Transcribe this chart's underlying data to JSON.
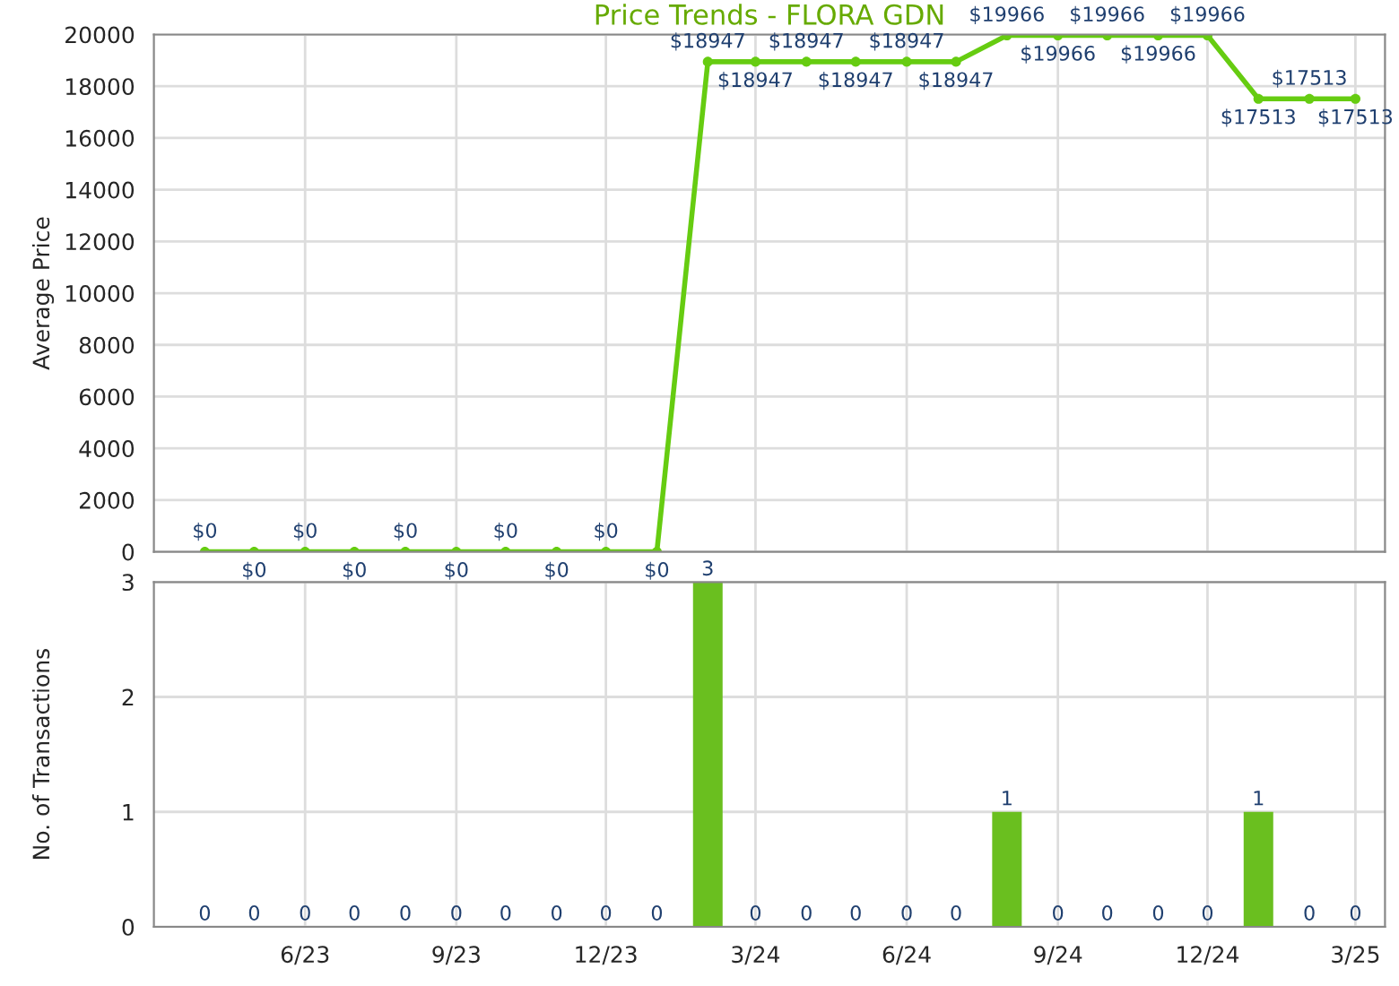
{
  "chart_data": [
    {
      "type": "line",
      "title": "Price Trends - FLORA GDN",
      "ylabel": "Average Price",
      "x": [
        "2023-04",
        "2023-05",
        "2023-06",
        "2023-07",
        "2023-08",
        "2023-09",
        "2023-10",
        "2023-11",
        "2023-12",
        "2024-01",
        "2024-02",
        "2024-03",
        "2024-04",
        "2024-05",
        "2024-06",
        "2024-07",
        "2024-08",
        "2024-09",
        "2024-10",
        "2024-11",
        "2024-12",
        "2025-01",
        "2025-02",
        "2025-03"
      ],
      "series": [
        {
          "color": "#66cc11",
          "values": [
            0,
            0,
            0,
            0,
            0,
            0,
            0,
            0,
            0,
            0,
            18947,
            18947,
            18947,
            18947,
            18947,
            18947,
            19966,
            19966,
            19966,
            19966,
            19966,
            17513,
            17513,
            17513
          ],
          "value_labels": [
            "$0",
            "$0",
            "$0",
            "$0",
            "$0",
            "$0",
            "$0",
            "$0",
            "$0",
            "$0",
            "$18947",
            "$18947",
            "$18947",
            "$18947",
            "$18947",
            "$18947",
            "$19966",
            "$19966",
            "$19966",
            "$19966",
            "$19966",
            "$17513",
            "$17513",
            "$17513"
          ]
        }
      ],
      "xlim": [
        "2023-03",
        "2025-03-19"
      ],
      "xticks": [
        {
          "value": "2023-06",
          "label": null
        },
        {
          "value": "2023-09",
          "label": null
        },
        {
          "value": "2023-12",
          "label": null
        },
        {
          "value": "2024-03",
          "label": null
        },
        {
          "value": "2024-06",
          "label": null
        },
        {
          "value": "2024-09",
          "label": null
        },
        {
          "value": "2024-12",
          "label": null
        },
        {
          "value": "2025-03",
          "label": null
        }
      ],
      "ylim": [
        0,
        20000
      ],
      "yticks": [
        0,
        2000,
        4000,
        6000,
        8000,
        10000,
        12000,
        14000,
        16000,
        18000,
        20000
      ],
      "grid": true,
      "marker": "circle",
      "line_style": "solid",
      "tick_labels": "y"
    },
    {
      "type": "bar",
      "ylabel": "No. of Transactions",
      "x": [
        "2023-04",
        "2023-05",
        "2023-06",
        "2023-07",
        "2023-08",
        "2023-09",
        "2023-10",
        "2023-11",
        "2023-12",
        "2024-01",
        "2024-02",
        "2024-03",
        "2024-04",
        "2024-05",
        "2024-06",
        "2024-07",
        "2024-08",
        "2024-09",
        "2024-10",
        "2024-11",
        "2024-12",
        "2025-01",
        "2025-02",
        "2025-03"
      ],
      "series": [
        {
          "color": "#6abf1f",
          "values": [
            0,
            0,
            0,
            0,
            0,
            0,
            0,
            0,
            0,
            0,
            3,
            0,
            0,
            0,
            0,
            0,
            1,
            0,
            0,
            0,
            0,
            1,
            0,
            0
          ]
        }
      ],
      "xlim": [
        "2023-03",
        "2025-03-19"
      ],
      "xticks": [
        {
          "value": "2023-06",
          "label": "6/23"
        },
        {
          "value": "2023-09",
          "label": "9/23"
        },
        {
          "value": "2023-12",
          "label": "12/23"
        },
        {
          "value": "2024-03",
          "label": "3/24"
        },
        {
          "value": "2024-06",
          "label": "6/24"
        },
        {
          "value": "2024-09",
          "label": "9/24"
        },
        {
          "value": "2024-12",
          "label": "12/24"
        },
        {
          "value": "2025-03",
          "label": "3/25"
        }
      ],
      "ylim": [
        0,
        3
      ],
      "yticks": [
        0,
        1,
        2,
        3
      ],
      "grid": true,
      "data_labels": true
    }
  ]
}
